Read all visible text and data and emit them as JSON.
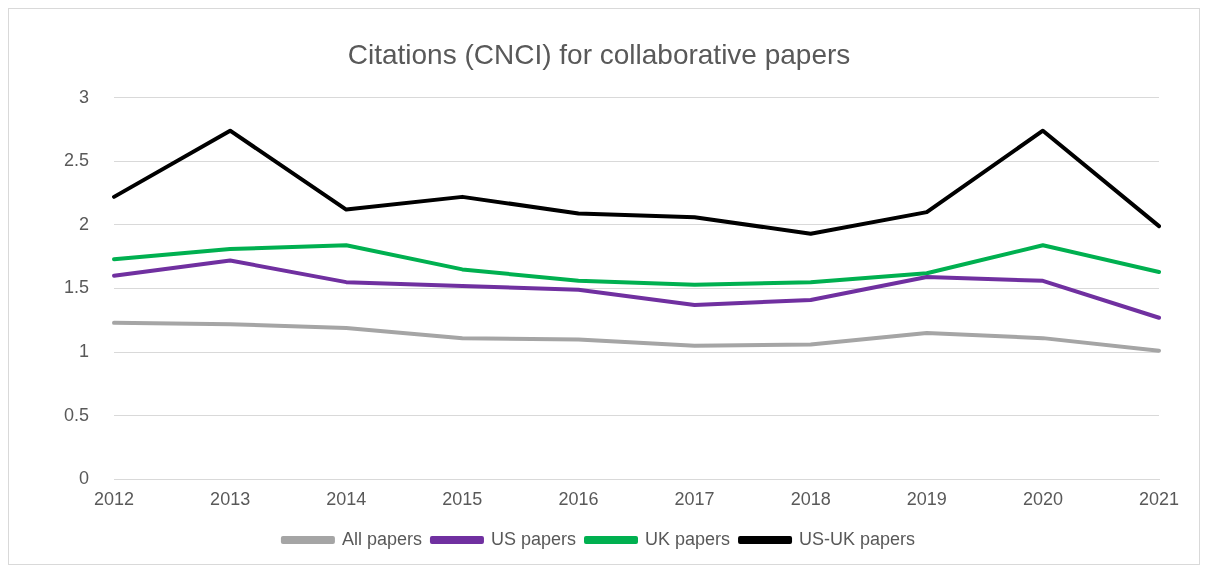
{
  "chart_data": {
    "type": "line",
    "title": "Citations (CNCI) for collaborative papers",
    "categories": [
      "2012",
      "2013",
      "2014",
      "2015",
      "2016",
      "2017",
      "2018",
      "2019",
      "2020",
      "2021"
    ],
    "series": [
      {
        "name": "All papers",
        "color": "#a5a5a5",
        "values": [
          1.23,
          1.22,
          1.19,
          1.11,
          1.1,
          1.05,
          1.06,
          1.15,
          1.11,
          1.01
        ]
      },
      {
        "name": "US papers",
        "color": "#7030a0",
        "values": [
          1.6,
          1.72,
          1.55,
          1.52,
          1.49,
          1.37,
          1.41,
          1.59,
          1.56,
          1.27
        ]
      },
      {
        "name": "UK papers",
        "color": "#00b050",
        "values": [
          1.73,
          1.81,
          1.84,
          1.65,
          1.56,
          1.53,
          1.55,
          1.62,
          1.84,
          1.63
        ]
      },
      {
        "name": "US-UK papers",
        "color": "#000000",
        "values": [
          2.22,
          2.74,
          2.12,
          2.22,
          2.09,
          2.06,
          1.93,
          2.1,
          2.74,
          1.99
        ]
      }
    ],
    "ylim": [
      0,
      3
    ],
    "yticks": [
      0,
      0.5,
      1,
      1.5,
      2,
      2.5,
      3
    ],
    "grid": "y",
    "legend": "bottom",
    "marker": "none",
    "line_style": "solid"
  }
}
